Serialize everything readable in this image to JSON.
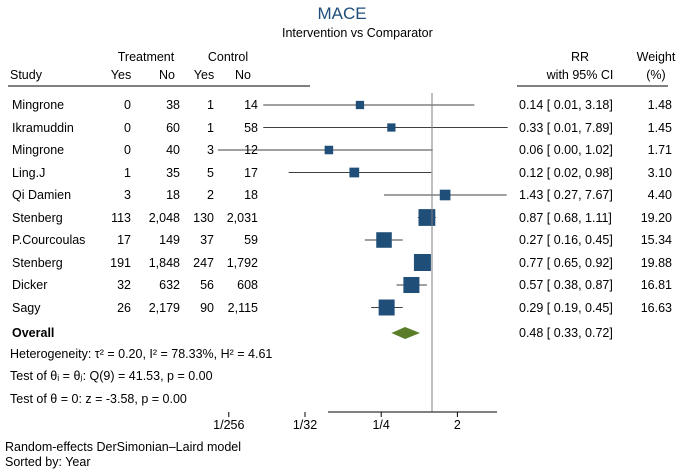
{
  "title": "MACE",
  "subtitle": "Intervention vs Comparator",
  "headers": {
    "study": "Study",
    "treatment": "Treatment",
    "control": "Control",
    "yes": "Yes",
    "no": "No",
    "rr": "RR",
    "ci": "with 95% CI",
    "weight": "Weight",
    "weight_unit": "(%)"
  },
  "overall_label": "Overall",
  "stats": {
    "heterogeneity": "Heterogeneity: τ² = 0.20, I² = 78.33%, H² = 4.61",
    "test_equal": "Test of θᵢ = θⱼ: Q(9) = 41.53, p = 0.00",
    "test_zero": "Test of θ = 0: z = -3.58, p = 0.00"
  },
  "footnotes": {
    "model": "Random-effects DerSimonian–Laird model",
    "sort": "Sorted by: Year"
  },
  "colors": {
    "marker": "#1f4e79",
    "diamond": "#5a7d2a",
    "line": "#000000",
    "refline": "#7f7f7f"
  },
  "chart_data": {
    "type": "forest",
    "scale": "log2",
    "xlim": [
      0.0029,
      8
    ],
    "xticks": [
      {
        "value": 0.00390625,
        "label": "1/256"
      },
      {
        "value": 0.03125,
        "label": "1/32"
      },
      {
        "value": 0.25,
        "label": "1/4"
      },
      {
        "value": 2,
        "label": "2"
      }
    ],
    "reference_line": 1,
    "studies": [
      {
        "study": "Mingrone",
        "t_yes": "0",
        "t_no": "38",
        "c_yes": "1",
        "c_no": "14",
        "rr": 0.14,
        "lo": 0.01,
        "hi": 3.18,
        "ci_text": "0.14 [ 0.01,  3.18]",
        "weight": 1.48,
        "weight_text": "1.48"
      },
      {
        "study": "Ikramuddin",
        "t_yes": "0",
        "t_no": "60",
        "c_yes": "1",
        "c_no": "58",
        "rr": 0.33,
        "lo": 0.01,
        "hi": 7.89,
        "ci_text": "0.33 [ 0.01,  7.89]",
        "weight": 1.45,
        "weight_text": "1.45"
      },
      {
        "study": "Mingrone",
        "t_yes": "0",
        "t_no": "40",
        "c_yes": "3",
        "c_no": "12",
        "rr": 0.06,
        "lo": 0.0,
        "hi": 1.02,
        "ci_text": "0.06 [ 0.00,  1.02]",
        "weight": 1.71,
        "weight_text": "1.71"
      },
      {
        "study": "Ling.J",
        "t_yes": "1",
        "t_no": "35",
        "c_yes": "5",
        "c_no": "17",
        "rr": 0.12,
        "lo": 0.02,
        "hi": 0.98,
        "ci_text": "0.12 [ 0.02,  0.98]",
        "weight": 3.1,
        "weight_text": "3.10"
      },
      {
        "study": "Qi Damien",
        "t_yes": "3",
        "t_no": "18",
        "c_yes": "2",
        "c_no": "18",
        "rr": 1.43,
        "lo": 0.27,
        "hi": 7.67,
        "ci_text": "1.43 [ 0.27,  7.67]",
        "weight": 4.4,
        "weight_text": "4.40"
      },
      {
        "study": "Stenberg",
        "t_yes": "113",
        "t_no": "2,048",
        "c_yes": "130",
        "c_no": "2,031",
        "rr": 0.87,
        "lo": 0.68,
        "hi": 1.11,
        "ci_text": "0.87 [ 0.68,  1.11]",
        "weight": 19.2,
        "weight_text": "19.20"
      },
      {
        "study": "P.Courcoulas",
        "t_yes": "17",
        "t_no": "149",
        "c_yes": "37",
        "c_no": "59",
        "rr": 0.27,
        "lo": 0.16,
        "hi": 0.45,
        "ci_text": "0.27 [ 0.16,  0.45]",
        "weight": 15.34,
        "weight_text": "15.34"
      },
      {
        "study": "Stenberg",
        "t_yes": "191",
        "t_no": "1,848",
        "c_yes": "247",
        "c_no": "1,792",
        "rr": 0.77,
        "lo": 0.65,
        "hi": 0.92,
        "ci_text": "0.77 [ 0.65,  0.92]",
        "weight": 19.88,
        "weight_text": "19.88"
      },
      {
        "study": "Dicker",
        "t_yes": "32",
        "t_no": "632",
        "c_yes": "56",
        "c_no": "608",
        "rr": 0.57,
        "lo": 0.38,
        "hi": 0.87,
        "ci_text": "0.57 [ 0.38,  0.87]",
        "weight": 16.81,
        "weight_text": "16.81"
      },
      {
        "study": "Sagy",
        "t_yes": "26",
        "t_no": "2,179",
        "c_yes": "90",
        "c_no": "2,115",
        "rr": 0.29,
        "lo": 0.19,
        "hi": 0.45,
        "ci_text": "0.29 [ 0.19,  0.45]",
        "weight": 16.63,
        "weight_text": "16.63"
      }
    ],
    "overall": {
      "rr": 0.48,
      "lo": 0.33,
      "hi": 0.72,
      "ci_text": "0.48 [ 0.33,  0.72]"
    }
  }
}
